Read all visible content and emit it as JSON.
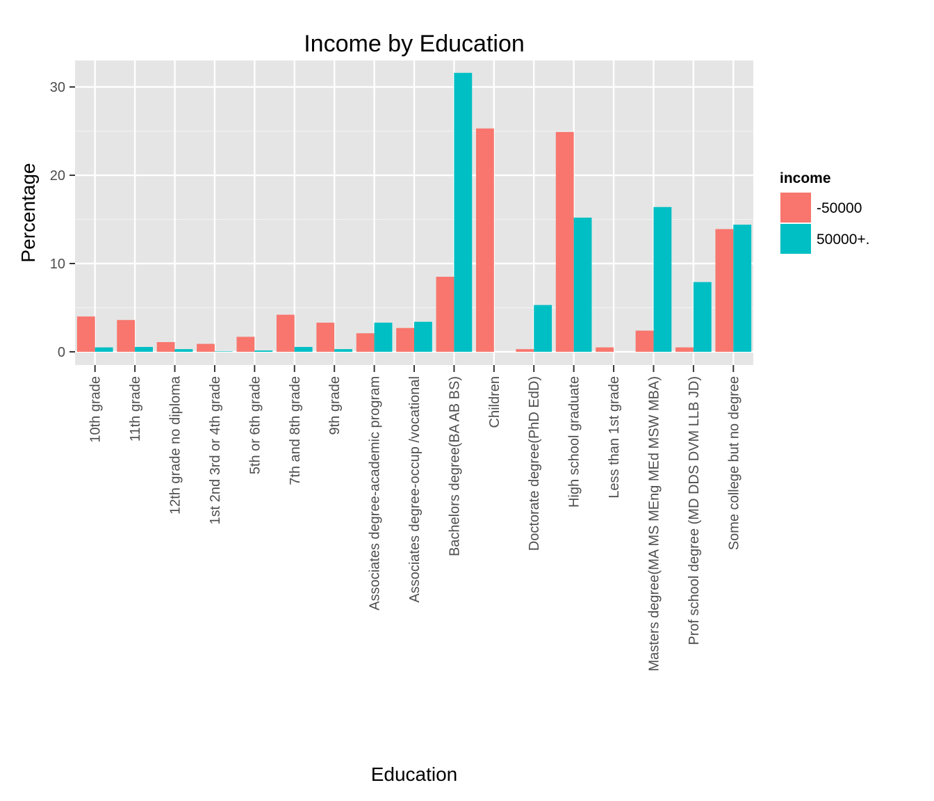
{
  "chart_data": {
    "type": "bar",
    "title": "Income by Education",
    "xlabel": "Education",
    "ylabel": "Percentage",
    "ylim": [
      -1.5,
      33
    ],
    "yticks": [
      0,
      10,
      20,
      30
    ],
    "grid": true,
    "legend_position": "right",
    "legend_title": "income",
    "categories": [
      "10th grade",
      "11th grade",
      "12th grade no diploma",
      "1st 2nd 3rd or 4th grade",
      "5th or 6th grade",
      "7th and 8th grade",
      "9th grade",
      "Associates degree-academic program",
      "Associates degree-occup /vocational",
      "Bachelors degree(BA AB BS)",
      "Children",
      "Doctorate degree(PhD EdD)",
      "High school graduate",
      "Less than 1st grade",
      "Masters degree(MA MS MEng MEd MSW MBA)",
      "Prof school degree (MD DDS DVM LLB JD)",
      "Some college but no degree"
    ],
    "series": [
      {
        "name": "-50000",
        "color": "#F8766D",
        "values": [
          4.0,
          3.6,
          1.1,
          0.9,
          1.7,
          4.2,
          3.3,
          2.1,
          2.7,
          8.5,
          25.3,
          0.3,
          24.9,
          0.5,
          2.4,
          0.5,
          13.9
        ]
      },
      {
        "name": "50000+.",
        "color": "#00BFC4",
        "values": [
          0.5,
          0.55,
          0.3,
          0.05,
          0.15,
          0.55,
          0.3,
          3.3,
          3.4,
          31.6,
          0.0,
          5.3,
          15.2,
          0.0,
          16.4,
          7.9,
          14.4
        ]
      }
    ]
  }
}
